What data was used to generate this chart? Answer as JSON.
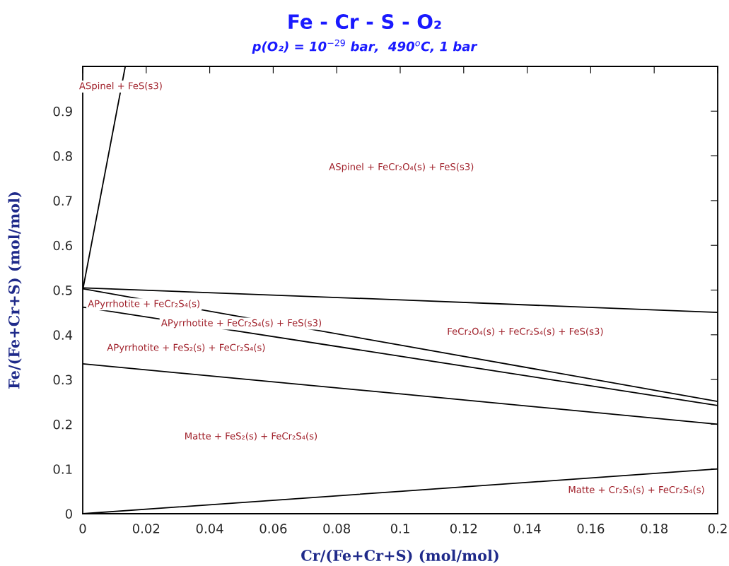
{
  "chart_data": {
    "type": "line",
    "title": "Fe - Cr - S - O₂",
    "subtitle": "p(O₂) = 10$^{−29}$ bar,  490$^{o}$C, 1 bar",
    "xlabel": "Cr/(Fe+Cr+S) (mol/mol)",
    "ylabel": "Fe/(Fe+Cr+S) (mol/mol)",
    "xlim": [
      0,
      0.2
    ],
    "ylim": [
      0,
      1.0
    ],
    "xticks": [
      0,
      0.02,
      0.04,
      0.06,
      0.08,
      0.1,
      0.12,
      0.14,
      0.16,
      0.18,
      0.2
    ],
    "yticks": [
      0,
      0.1,
      0.2,
      0.3,
      0.4,
      0.5,
      0.6,
      0.7,
      0.8,
      0.9
    ],
    "series": [
      {
        "color": "#000000",
        "x": [
          0,
          0.0134
        ],
        "values": [
          0.5,
          1.0
        ]
      },
      {
        "color": "#000000",
        "x": [
          0,
          0.1,
          0.2
        ],
        "values": [
          0.505,
          0.478,
          0.45
        ]
      },
      {
        "color": "#000000",
        "x": [
          0,
          0.1,
          0.2
        ],
        "values": [
          0.503,
          0.377,
          0.251
        ]
      },
      {
        "color": "#000000",
        "x": [
          0,
          0.1,
          0.2
        ],
        "values": [
          0.462,
          0.352,
          0.242
        ]
      },
      {
        "color": "#000000",
        "x": [
          0,
          0.1,
          0.2
        ],
        "values": [
          0.335,
          0.268,
          0.2
        ]
      },
      {
        "color": "#000000",
        "x": [
          0,
          0.1,
          0.2
        ],
        "values": [
          0,
          0.05,
          0.1
        ]
      }
    ],
    "annotations": [
      "ASpinel + FeS(s3)",
      "ASpinel + FeCr₂O₄(s) + FeS(s3)",
      "APyrrhotite + FeCr₂S₄(s)",
      "APyrrhotite + FeCr₂S₄(s) + FeS(s3)",
      "FeCr₂O₄(s) + FeCr₂S₄(s) + FeS(s3)",
      "APyrrhotite + FeS₂(s) + FeCr₂S₄(s)",
      "Matte + FeS₂(s) + FeCr₂S₄(s)",
      "Matte + Cr₂S₃(s) + FeCr₂S₄(s)"
    ]
  }
}
